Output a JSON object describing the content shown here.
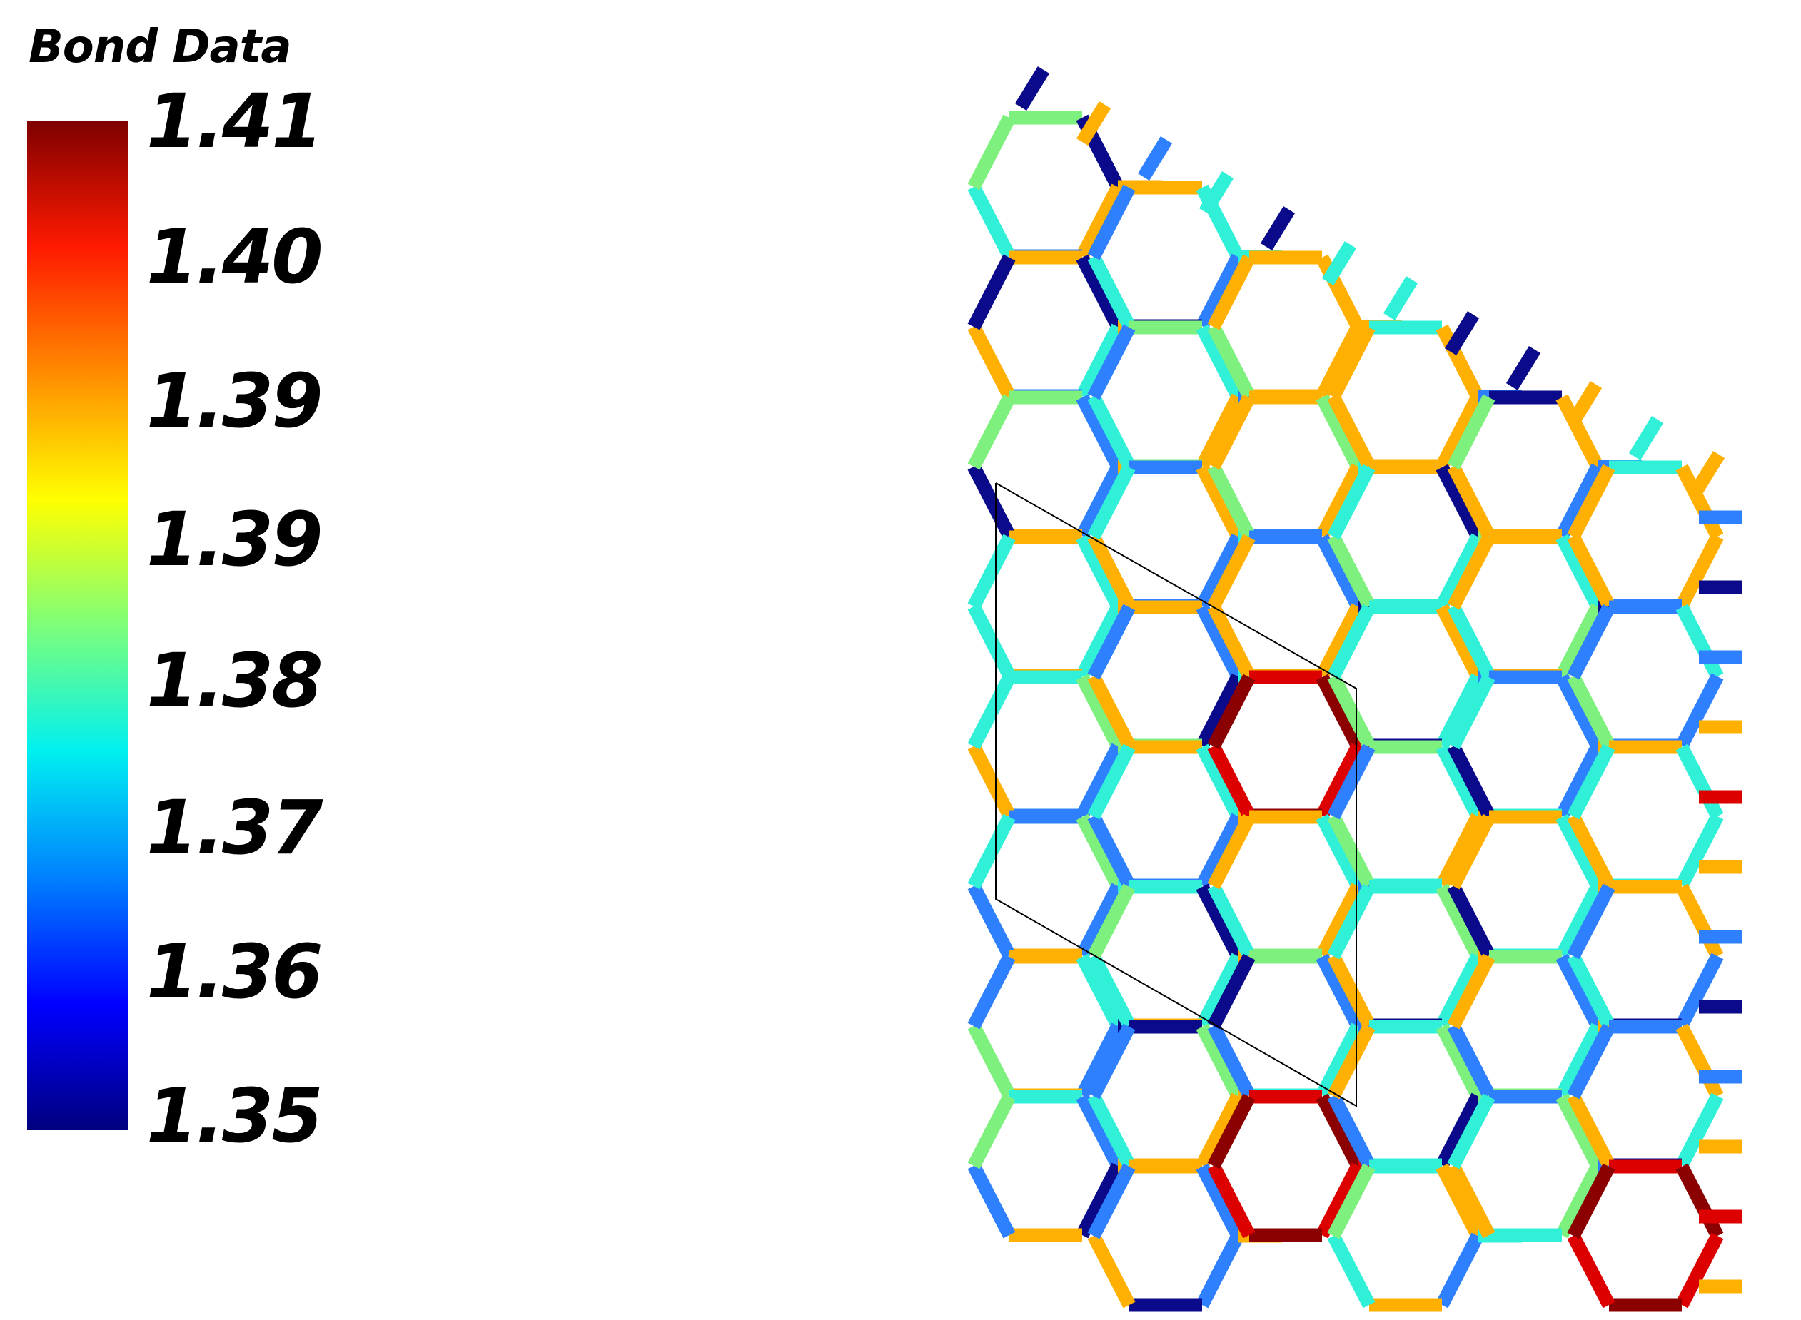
{
  "legend": {
    "title": "Bond Data",
    "ticks": [
      "1.41",
      "1.40",
      "1.39",
      "1.39",
      "1.38",
      "1.37",
      "1.36",
      "1.35"
    ],
    "colormap": [
      "#7f0000",
      "#ff1a00",
      "#ff8c00",
      "#ffff00",
      "#7dff7a",
      "#00f0f0",
      "#0080ff",
      "#0000ff",
      "#00007f"
    ]
  },
  "lattice": {
    "description_colors": {
      "high": "#8b0000",
      "red": "#dd0000",
      "orange": "#ffb000",
      "green": "#7ef07e",
      "cyan": "#30f0d8",
      "blue": "#2f80ff",
      "navy": "#0a0a8a"
    },
    "cell_outline": true
  }
}
